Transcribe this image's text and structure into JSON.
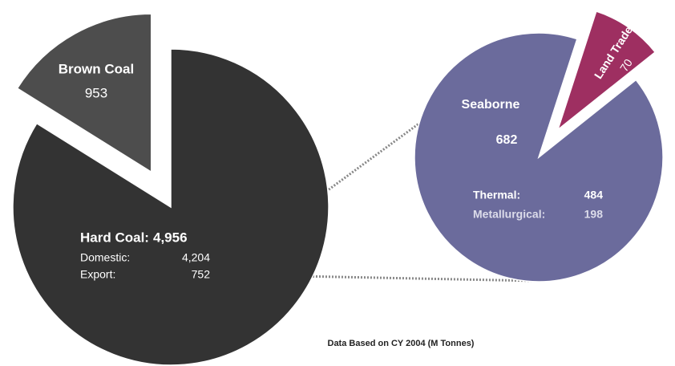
{
  "chart_data": [
    {
      "type": "pie",
      "categories": [
        "Hard Coal:",
        "Brown Coal"
      ],
      "values": [
        4956,
        953
      ],
      "value_labels": [
        "4,956",
        "953"
      ],
      "colors": [
        "#333333",
        "#4d4d4d"
      ],
      "breakdown": {
        "categories": [
          "Domestic:",
          "Export:"
        ],
        "values": [
          4204,
          752
        ],
        "value_labels": [
          "4,204",
          "752"
        ]
      }
    },
    {
      "type": "pie",
      "categories": [
        "Seaborne",
        "Land Trade"
      ],
      "values": [
        682,
        70
      ],
      "colors": [
        "#6b6b9c",
        "#9e2f61"
      ],
      "breakdown": {
        "categories": [
          "Thermal:",
          "Metallurgical:"
        ],
        "values": [
          484,
          198
        ]
      }
    }
  ],
  "note": "Data Based on CY 2004 (M Tonnes)"
}
